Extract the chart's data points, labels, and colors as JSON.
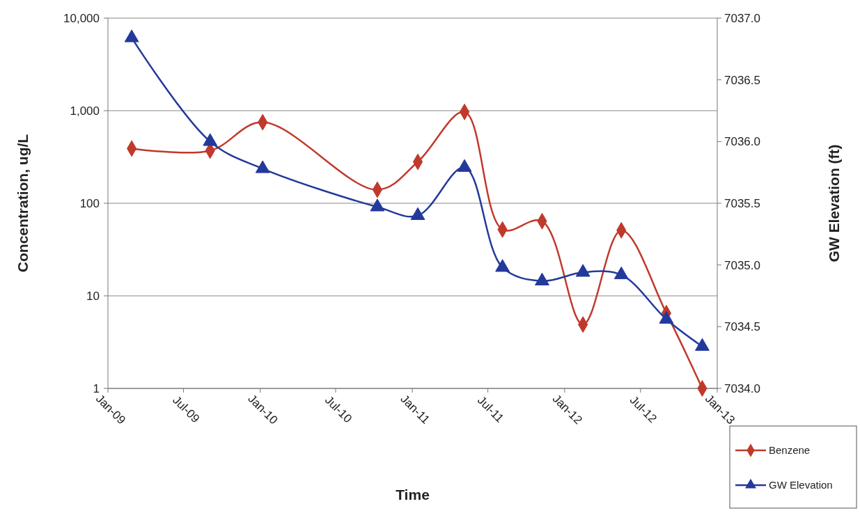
{
  "chart_data": {
    "type": "line",
    "xlabel": "Time",
    "ylabel": "Concentration, ug/L",
    "y2label": "GW Elevation (ft)",
    "log": "y",
    "grid": "y",
    "legend": "bottom right",
    "line_style": "solid",
    "xlim": [
      "2009-01-01",
      "2013-01-01"
    ],
    "xticks": [
      {
        "value": "2009-01-01",
        "label": "Jan-09"
      },
      {
        "value": "2009-07-01",
        "label": "Jul-09"
      },
      {
        "value": "2010-01-01",
        "label": "Jan-10"
      },
      {
        "value": "2010-07-01",
        "label": "Jul-10"
      },
      {
        "value": "2011-01-01",
        "label": "Jan-11"
      },
      {
        "value": "2011-07-01",
        "label": "Jul-11"
      },
      {
        "value": "2012-01-01",
        "label": "Jan-12"
      },
      {
        "value": "2012-07-01",
        "label": "Jul-12"
      },
      {
        "value": "2013-01-01",
        "label": "Jan-13"
      }
    ],
    "ylim": [
      1,
      10000
    ],
    "yticks": [
      1,
      10,
      100,
      {
        "value": 1000,
        "label": "1,000"
      },
      {
        "value": 10000,
        "label": "10,000"
      }
    ],
    "y2lim": [
      7034,
      7037
    ],
    "y2ticks": [
      {
        "value": 7034,
        "label": "7034.0"
      },
      {
        "value": 7034.5,
        "label": "7034.5"
      },
      {
        "value": 7035,
        "label": "7035.0"
      },
      {
        "value": 7035.5,
        "label": "7035.5"
      },
      {
        "value": 7036,
        "label": "7036.0"
      },
      {
        "value": 7036.5,
        "label": "7036.5"
      },
      {
        "value": 7037,
        "label": "7037.0"
      }
    ],
    "x": [
      "2009-02-27",
      "2009-09-03",
      "2010-01-07",
      "2010-10-09",
      "2011-01-14",
      "2011-05-06",
      "2011-08-05",
      "2011-11-08",
      "2012-02-14",
      "2012-05-16",
      "2012-09-01",
      "2012-11-26"
    ],
    "series": [
      {
        "name": "Benzene",
        "color": "#c0392b",
        "marker": "diamond",
        "values": [
          390,
          370,
          750,
          140,
          280,
          970,
          52,
          64,
          4.9,
          51,
          6.5,
          1
        ]
      },
      {
        "name": "GW Elevation",
        "color": "#23399b",
        "marker": "triangle",
        "axis": "y2",
        "values": [
          7036.84,
          7036.0,
          7035.78,
          7035.47,
          7035.4,
          7035.79,
          7034.98,
          7034.87,
          7034.94,
          7034.92,
          7034.56,
          7034.34
        ]
      }
    ]
  }
}
